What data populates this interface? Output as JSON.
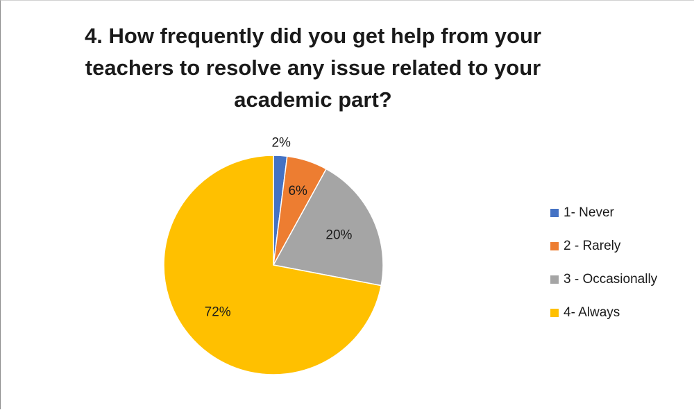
{
  "chart_data": {
    "type": "pie",
    "title": "4. How frequently did you get help from your teachers to resolve any issue related to your academic part?",
    "slices": [
      {
        "name": "1- Never",
        "value": 2,
        "label": "2%",
        "color": "#4472c4"
      },
      {
        "name": "2 - Rarely",
        "value": 6,
        "label": "6%",
        "color": "#ed7d31"
      },
      {
        "name": "3 - Occasionally",
        "value": 20,
        "label": "20%",
        "color": "#a5a5a5"
      },
      {
        "name": "4- Always",
        "value": 72,
        "label": "72%",
        "color": "#ffc000"
      }
    ],
    "legend_position": "right"
  }
}
